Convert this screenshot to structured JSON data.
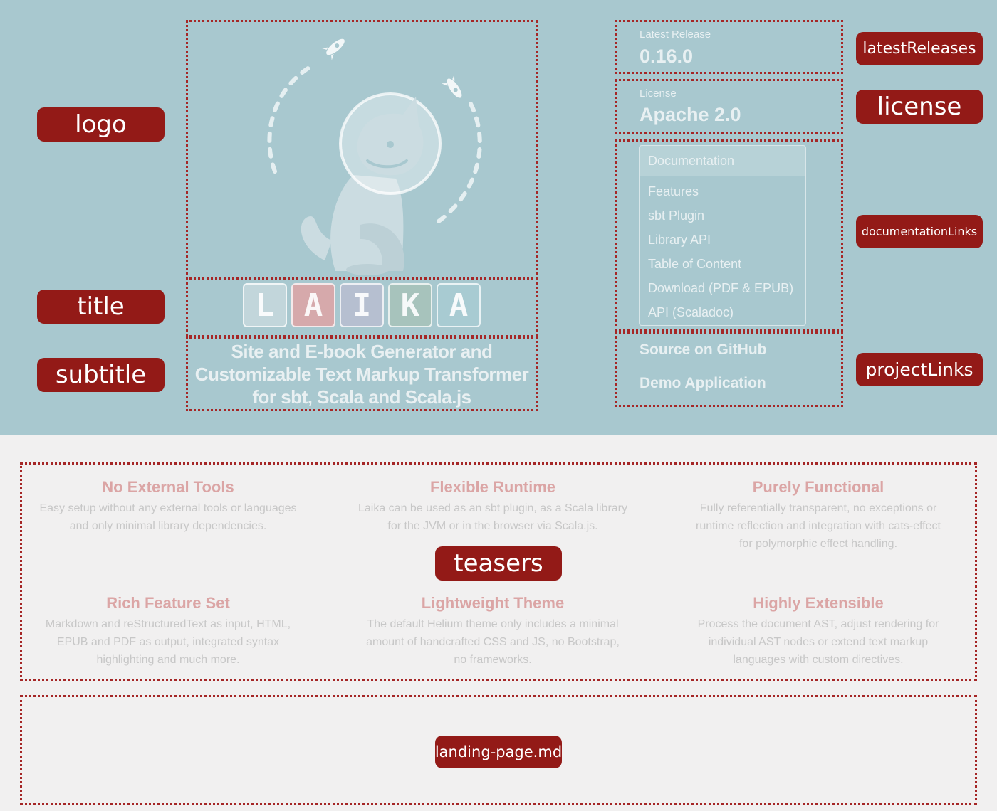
{
  "hero": {
    "title_letters": [
      {
        "char": "L",
        "bg": "#c2d6db"
      },
      {
        "char": "A",
        "bg": "#d6a9ab"
      },
      {
        "char": "I",
        "bg": "#b6bfd0"
      },
      {
        "char": "K",
        "bg": "#a7c3bc"
      },
      {
        "char": "A",
        "bg": "#a8cbd2"
      }
    ],
    "subtitle": [
      "Site and E-book Generator and",
      "Customizable Text Markup Transformer",
      "for sbt, Scala and Scala.js"
    ],
    "latest_release": {
      "label": "Latest Release",
      "value": "0.16.0"
    },
    "license": {
      "label": "License",
      "value": "Apache 2.0"
    },
    "documentation": {
      "header": "Documentation",
      "items": [
        "Features",
        "sbt Plugin",
        "Library API",
        "Table of Content",
        "Download (PDF & EPUB)",
        "API (Scaladoc)"
      ]
    },
    "project_links": [
      "Source on GitHub",
      "Demo Application"
    ]
  },
  "annotations": {
    "logo": "logo",
    "title": "title",
    "subtitle": "subtitle",
    "latestReleases": "latestReleases",
    "license": "license",
    "documentationLinks": "documentationLinks",
    "projectLinks": "projectLinks",
    "teasers": "teasers",
    "landing": "landing-page.md"
  },
  "teasers": [
    {
      "title": "No External Tools",
      "text": [
        "Easy setup without any external tools or languages",
        "and only minimal library dependencies."
      ]
    },
    {
      "title": "Flexible Runtime",
      "text": [
        "Laika can be used as an sbt plugin, as a Scala library",
        "for the JVM or in the browser via Scala.js."
      ]
    },
    {
      "title": "Purely Functional",
      "text": [
        "Fully referentially transparent, no exceptions or",
        "runtime reflection and integration with cats-effect",
        "for polymorphic effect handling."
      ]
    },
    {
      "title": "Rich Feature Set",
      "text": [
        "Markdown and reStructuredText as input, HTML,",
        "EPUB and PDF as output, integrated syntax",
        "highlighting and much more."
      ]
    },
    {
      "title": "Lightweight Theme",
      "text": [
        "The default Helium theme only includes a minimal",
        "amount of handcrafted CSS and JS, no Bootstrap,",
        "no frameworks."
      ]
    },
    {
      "title": "Highly Extensible",
      "text": [
        "Process the document AST, adjust rendering for",
        "individual AST nodes or extend text markup",
        "languages with custom directives."
      ]
    }
  ],
  "colors": {
    "hero_bg": "#a8c8cf",
    "teaser_bg": "#f1f0f0",
    "annotation_red": "#931a17",
    "dotted_border": "#a52626",
    "teaser_title": "#dba5a5",
    "teaser_text": "#c7c7c7"
  },
  "icons": [
    "rocket-icon",
    "rocket-icon",
    "space-dog-icon"
  ]
}
